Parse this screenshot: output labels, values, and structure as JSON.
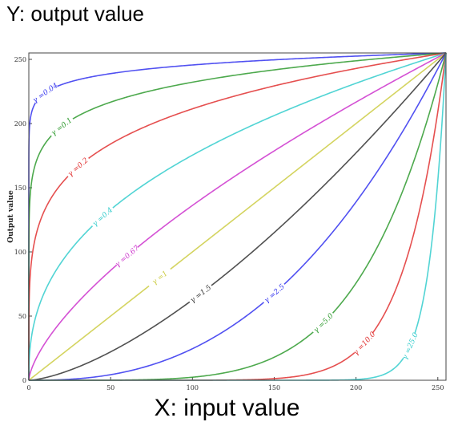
{
  "captions": {
    "top": "Y: output value",
    "bottom": "X: input value"
  },
  "chart_data": {
    "type": "line",
    "title": "",
    "xlabel": "",
    "ylabel": "Output value",
    "xlim": [
      0,
      255
    ],
    "ylim": [
      0,
      255
    ],
    "x_ticks": [
      0,
      50,
      100,
      150,
      200,
      250
    ],
    "y_ticks": [
      0,
      50,
      100,
      150,
      200,
      250
    ],
    "grid": false,
    "function": "output = 255 * (input / 255) ^ gamma",
    "series": [
      {
        "name": "γ =0.04",
        "gamma": 0.04,
        "color": "#3333ee",
        "label_x": 10
      },
      {
        "name": "γ =0.1",
        "gamma": 0.1,
        "color": "#2e9a2e",
        "label_x": 20
      },
      {
        "name": "γ =0.2",
        "gamma": 0.2,
        "color": "#e03030",
        "label_x": 30
      },
      {
        "name": "γ =0.4",
        "gamma": 0.4,
        "color": "#33cccc",
        "label_x": 45
      },
      {
        "name": "γ =0.67",
        "gamma": 0.67,
        "color": "#cc33cc",
        "label_x": 60
      },
      {
        "name": "γ =1",
        "gamma": 1.0,
        "color": "#cccc44",
        "label_x": 80
      },
      {
        "name": "γ =1.5",
        "gamma": 1.5,
        "color": "#333333",
        "label_x": 105
      },
      {
        "name": "γ =2.5",
        "gamma": 2.5,
        "color": "#3333ee",
        "label_x": 150
      },
      {
        "name": "γ =5.0",
        "gamma": 5.0,
        "color": "#2e9a2e",
        "label_x": 180
      },
      {
        "name": "γ =10.0",
        "gamma": 10.0,
        "color": "#e03030",
        "label_x": 205
      },
      {
        "name": "γ =25.0",
        "gamma": 25.0,
        "color": "#33cccc",
        "label_x": 233
      }
    ]
  }
}
